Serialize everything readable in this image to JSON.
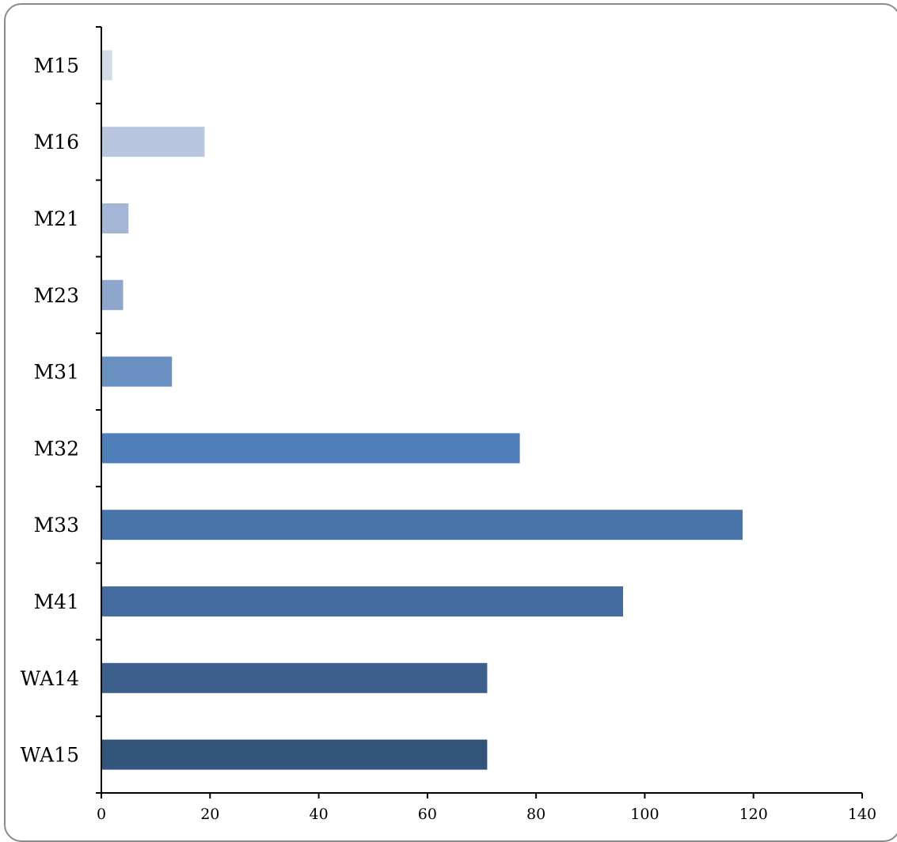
{
  "chart_data": {
    "type": "bar",
    "orientation": "horizontal",
    "categories": [
      "M15",
      "M16",
      "M21",
      "M23",
      "M31",
      "M32",
      "M33",
      "M41",
      "WA14",
      "WA15"
    ],
    "values": [
      2,
      19,
      5,
      4,
      13,
      77,
      118,
      96,
      71,
      71
    ],
    "colors": [
      "#d3dbe9",
      "#b9c6df",
      "#a3b6d5",
      "#8ea5cc",
      "#6a8fc1",
      "#4f7fb8",
      "#4874a9",
      "#436b9d",
      "#3c5f8c",
      "#33557c"
    ],
    "xlim": [
      0,
      140
    ],
    "xticks": [
      "0",
      "20",
      "40",
      "60",
      "80",
      "100",
      "120",
      "140"
    ],
    "title": "",
    "xlabel": "",
    "ylabel": "",
    "grid": false,
    "legend": "none"
  }
}
